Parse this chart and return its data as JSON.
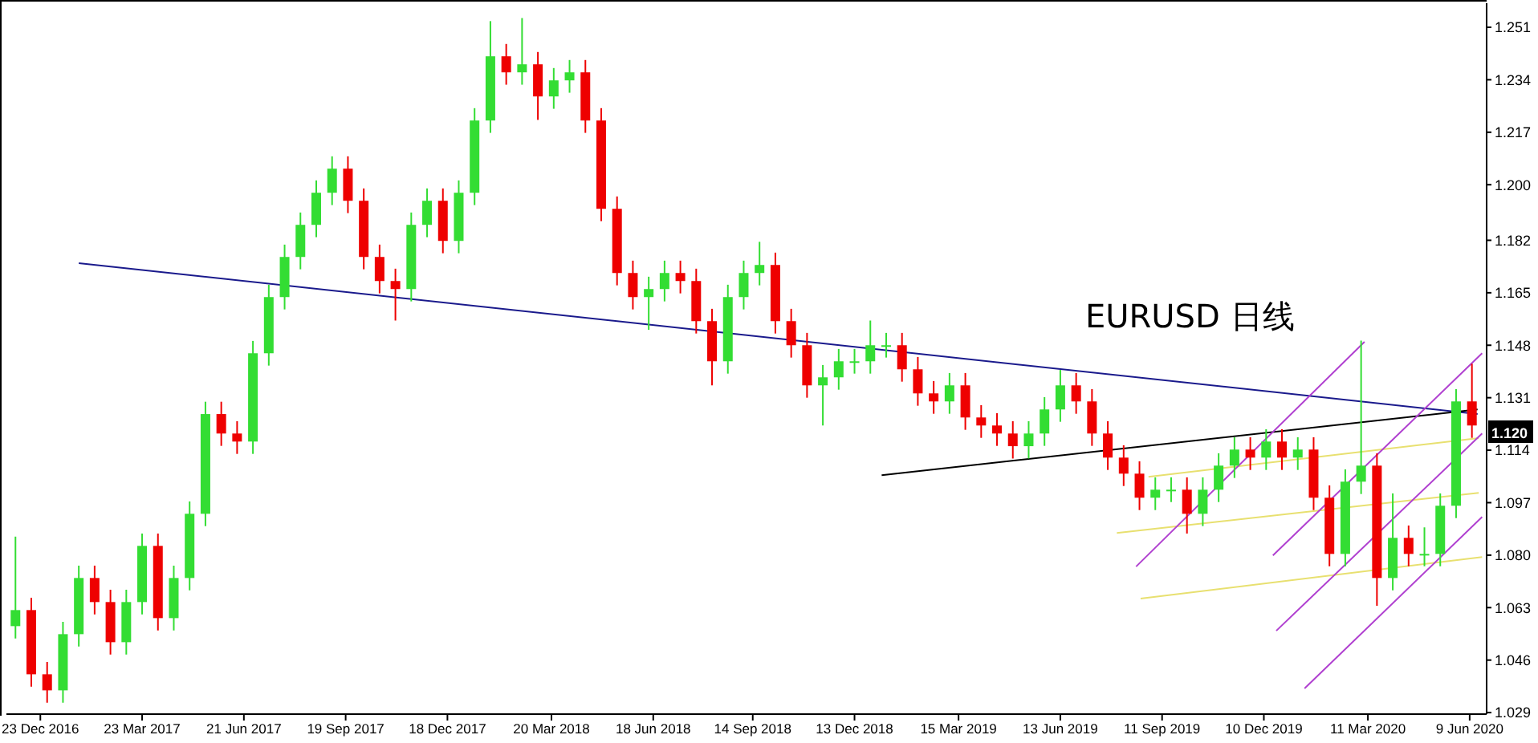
{
  "chart_data": {
    "type": "candlestick",
    "title": "EURUSD 日线",
    "x": [
      "2016-12-01",
      "2016-12-15",
      "2016-12-29",
      "2017-01-12",
      "2017-01-26",
      "2017-02-09",
      "2017-02-23",
      "2017-03-09",
      "2017-03-23",
      "2017-04-06",
      "2017-04-20",
      "2017-05-04",
      "2017-05-18",
      "2017-06-01",
      "2017-06-15",
      "2017-06-29",
      "2017-07-13",
      "2017-07-27",
      "2017-08-10",
      "2017-08-24",
      "2017-09-07",
      "2017-09-21",
      "2017-10-05",
      "2017-10-19",
      "2017-11-02",
      "2017-11-16",
      "2017-11-30",
      "2017-12-14",
      "2017-12-28",
      "2018-01-11",
      "2018-01-25",
      "2018-02-08",
      "2018-02-22",
      "2018-03-08",
      "2018-03-22",
      "2018-04-05",
      "2018-04-19",
      "2018-05-03",
      "2018-05-17",
      "2018-05-31",
      "2018-06-14",
      "2018-06-28",
      "2018-07-12",
      "2018-07-26",
      "2018-08-09",
      "2018-08-23",
      "2018-09-06",
      "2018-09-20",
      "2018-10-04",
      "2018-10-18",
      "2018-11-01",
      "2018-11-15",
      "2018-11-29",
      "2018-12-13",
      "2018-12-27",
      "2019-01-10",
      "2019-01-24",
      "2019-02-07",
      "2019-02-21",
      "2019-03-07",
      "2019-03-21",
      "2019-04-04",
      "2019-04-18",
      "2019-05-02",
      "2019-05-16",
      "2019-05-30",
      "2019-06-13",
      "2019-06-27",
      "2019-07-11",
      "2019-07-25",
      "2019-08-08",
      "2019-08-22",
      "2019-09-05",
      "2019-09-19",
      "2019-10-03",
      "2019-10-17",
      "2019-10-31",
      "2019-11-14",
      "2019-11-28",
      "2019-12-12",
      "2019-12-26",
      "2020-01-09",
      "2020-01-23",
      "2020-02-06",
      "2020-02-20",
      "2020-03-05",
      "2020-03-19",
      "2020-04-02",
      "2020-04-16",
      "2020-04-30",
      "2020-05-14",
      "2020-05-28",
      "2020-06-11"
    ],
    "ohlc": [
      [
        1.057,
        1.086,
        1.053,
        1.0622
      ],
      [
        1.0622,
        1.0662,
        1.0374,
        1.0414
      ],
      [
        1.0414,
        1.0454,
        1.0322,
        1.0362
      ],
      [
        1.0362,
        1.0584,
        1.0322,
        1.0544
      ],
      [
        1.0544,
        1.0766,
        1.0504,
        1.0726
      ],
      [
        1.0726,
        1.0766,
        1.0608,
        1.0648
      ],
      [
        1.0648,
        1.0688,
        1.0478,
        1.0518
      ],
      [
        1.0518,
        1.0688,
        1.0478,
        1.0648
      ],
      [
        1.0648,
        1.087,
        1.0608,
        1.083
      ],
      [
        1.083,
        1.087,
        1.0556,
        1.0596
      ],
      [
        1.0596,
        1.0766,
        1.0556,
        1.0726
      ],
      [
        1.0726,
        1.0974,
        1.0686,
        1.0934
      ],
      [
        1.0934,
        1.1297,
        1.0894,
        1.1257
      ],
      [
        1.1257,
        1.1297,
        1.1154,
        1.1194
      ],
      [
        1.1194,
        1.1234,
        1.1128,
        1.1168
      ],
      [
        1.1168,
        1.1494,
        1.1128,
        1.1454
      ],
      [
        1.1454,
        1.1676,
        1.1414,
        1.1636
      ],
      [
        1.1636,
        1.1806,
        1.1596,
        1.1766
      ],
      [
        1.1766,
        1.191,
        1.1726,
        1.187
      ],
      [
        1.187,
        1.2014,
        1.183,
        1.1974
      ],
      [
        1.1974,
        1.2092,
        1.1934,
        1.2052
      ],
      [
        1.2052,
        1.2092,
        1.1908,
        1.1948
      ],
      [
        1.1948,
        1.1988,
        1.1726,
        1.1766
      ],
      [
        1.1766,
        1.1806,
        1.1648,
        1.1688
      ],
      [
        1.1688,
        1.1728,
        1.156,
        1.1662
      ],
      [
        1.1662,
        1.191,
        1.1622,
        1.187
      ],
      [
        1.187,
        1.1988,
        1.183,
        1.1948
      ],
      [
        1.1948,
        1.1988,
        1.1778,
        1.1818
      ],
      [
        1.1818,
        1.2014,
        1.1778,
        1.1974
      ],
      [
        1.1974,
        1.2248,
        1.1934,
        1.2208
      ],
      [
        1.2208,
        1.253,
        1.2168,
        1.2416
      ],
      [
        1.2416,
        1.2456,
        1.2324,
        1.2364
      ],
      [
        1.2364,
        1.254,
        1.2324,
        1.239
      ],
      [
        1.239,
        1.243,
        1.221,
        1.2286
      ],
      [
        1.2286,
        1.2378,
        1.2246,
        1.2338
      ],
      [
        1.2338,
        1.2404,
        1.2298,
        1.2364
      ],
      [
        1.2364,
        1.2404,
        1.2168,
        1.2208
      ],
      [
        1.2208,
        1.2248,
        1.1882,
        1.1922
      ],
      [
        1.1922,
        1.1962,
        1.1674,
        1.1714
      ],
      [
        1.1714,
        1.1754,
        1.1596,
        1.1636
      ],
      [
        1.1636,
        1.1702,
        1.153,
        1.1662
      ],
      [
        1.1662,
        1.1754,
        1.1622,
        1.1714
      ],
      [
        1.1714,
        1.1754,
        1.1648,
        1.1688
      ],
      [
        1.1688,
        1.1728,
        1.1518,
        1.1558
      ],
      [
        1.1558,
        1.1598,
        1.135,
        1.1428
      ],
      [
        1.1428,
        1.1676,
        1.1388,
        1.1636
      ],
      [
        1.1636,
        1.1754,
        1.1596,
        1.1714
      ],
      [
        1.1714,
        1.1815,
        1.1674,
        1.174
      ],
      [
        1.174,
        1.178,
        1.1518,
        1.1558
      ],
      [
        1.1558,
        1.1598,
        1.144,
        1.148
      ],
      [
        1.148,
        1.152,
        1.131,
        1.135
      ],
      [
        1.135,
        1.1416,
        1.122,
        1.1376
      ],
      [
        1.1376,
        1.1468,
        1.1336,
        1.1428
      ],
      [
        1.1428,
        1.1468,
        1.1388,
        1.1428
      ],
      [
        1.1428,
        1.156,
        1.1388,
        1.148
      ],
      [
        1.148,
        1.152,
        1.144,
        1.148
      ],
      [
        1.148,
        1.152,
        1.1362,
        1.1402
      ],
      [
        1.1402,
        1.1442,
        1.1284,
        1.1324
      ],
      [
        1.1324,
        1.1364,
        1.1258,
        1.1298
      ],
      [
        1.1298,
        1.139,
        1.1258,
        1.135
      ],
      [
        1.135,
        1.139,
        1.1206,
        1.1246
      ],
      [
        1.1246,
        1.1286,
        1.118,
        1.122
      ],
      [
        1.122,
        1.126,
        1.1154,
        1.1194
      ],
      [
        1.1194,
        1.1234,
        1.1113,
        1.1153
      ],
      [
        1.1153,
        1.1234,
        1.1113,
        1.1194
      ],
      [
        1.1194,
        1.1312,
        1.1154,
        1.1272
      ],
      [
        1.1272,
        1.14,
        1.1232,
        1.135
      ],
      [
        1.135,
        1.139,
        1.1258,
        1.1298
      ],
      [
        1.1298,
        1.1338,
        1.1154,
        1.1194
      ],
      [
        1.1194,
        1.1234,
        1.1076,
        1.1116
      ],
      [
        1.1116,
        1.1156,
        1.1024,
        1.1064
      ],
      [
        1.1064,
        1.1104,
        1.0946,
        1.0986
      ],
      [
        1.0986,
        1.1052,
        1.0946,
        1.1012
      ],
      [
        1.1012,
        1.1052,
        1.0972,
        1.1012
      ],
      [
        1.1012,
        1.1052,
        1.087,
        1.0934
      ],
      [
        1.0934,
        1.1052,
        1.0894,
        1.1012
      ],
      [
        1.1012,
        1.113,
        1.0972,
        1.109
      ],
      [
        1.109,
        1.1182,
        1.105,
        1.1142
      ],
      [
        1.1142,
        1.1182,
        1.1076,
        1.1116
      ],
      [
        1.1116,
        1.1208,
        1.1076,
        1.1168
      ],
      [
        1.1168,
        1.1208,
        1.1076,
        1.1116
      ],
      [
        1.1116,
        1.1182,
        1.1076,
        1.1142
      ],
      [
        1.1142,
        1.1182,
        1.0946,
        1.0986
      ],
      [
        1.0986,
        1.1026,
        1.0764,
        1.0804
      ],
      [
        1.0804,
        1.1078,
        1.0764,
        1.1038
      ],
      [
        1.1038,
        1.1495,
        1.0998,
        1.109
      ],
      [
        1.109,
        1.113,
        1.0636,
        1.0726
      ],
      [
        1.0726,
        1.1,
        1.0686,
        1.0856
      ],
      [
        1.0856,
        1.0896,
        1.0764,
        1.0804
      ],
      [
        1.0804,
        1.089,
        1.0764,
        1.0804
      ],
      [
        1.0804,
        1.1,
        1.0764,
        1.096
      ],
      [
        1.096,
        1.1338,
        1.092,
        1.1298
      ],
      [
        1.1298,
        1.142,
        1.118,
        1.122
      ]
    ],
    "colors": [
      "#33dd33",
      "#ee0000",
      "#ee0000",
      "#33dd33",
      "#33dd33",
      "#ee0000",
      "#ee0000",
      "#33dd33",
      "#33dd33",
      "#ee0000",
      "#33dd33",
      "#33dd33",
      "#33dd33",
      "#ee0000",
      "#ee0000",
      "#33dd33",
      "#33dd33",
      "#33dd33",
      "#33dd33",
      "#33dd33",
      "#33dd33",
      "#ee0000",
      "#ee0000",
      "#ee0000",
      "#ee0000",
      "#33dd33",
      "#33dd33",
      "#ee0000",
      "#33dd33",
      "#33dd33",
      "#33dd33",
      "#ee0000",
      "#33dd33",
      "#ee0000",
      "#33dd33",
      "#33dd33",
      "#ee0000",
      "#ee0000",
      "#ee0000",
      "#ee0000",
      "#33dd33",
      "#33dd33",
      "#ee0000",
      "#ee0000",
      "#ee0000",
      "#33dd33",
      "#33dd33",
      "#33dd33",
      "#ee0000",
      "#ee0000",
      "#ee0000",
      "#33dd33",
      "#33dd33",
      "#33dd33",
      "#33dd33",
      "#33dd33",
      "#ee0000",
      "#ee0000",
      "#ee0000",
      "#33dd33",
      "#ee0000",
      "#ee0000",
      "#ee0000",
      "#ee0000",
      "#33dd33",
      "#33dd33",
      "#33dd33",
      "#ee0000",
      "#ee0000",
      "#ee0000",
      "#ee0000",
      "#ee0000",
      "#33dd33",
      "#33dd33",
      "#ee0000",
      "#33dd33",
      "#33dd33",
      "#33dd33",
      "#ee0000",
      "#33dd33",
      "#ee0000",
      "#33dd33",
      "#ee0000",
      "#ee0000",
      "#33dd33",
      "#33dd33",
      "#ee0000",
      "#33dd33",
      "#ee0000",
      "#33dd33",
      "#33dd33",
      "#33dd33",
      "#ee0000"
    ],
    "series": [
      {
        "type": "line",
        "x": [
          "2017-01-26",
          "2020-06-16"
        ],
        "values": [
          1.1746,
          1.1257
        ],
        "color": "#1a1a8c"
      },
      {
        "type": "line",
        "x": [
          "2019-01-06",
          "2020-06-16"
        ],
        "values": [
          1.1059,
          1.1272
        ],
        "color": "#000000"
      },
      {
        "type": "line",
        "x": [
          "2019-08-30",
          "2020-06-17"
        ],
        "values": [
          1.1054,
          1.1179
        ],
        "color": "#e8e070"
      },
      {
        "type": "line",
        "x": [
          "2019-08-02",
          "2020-06-17"
        ],
        "values": [
          1.0872,
          1.1002
        ],
        "color": "#e8e070"
      },
      {
        "type": "line",
        "x": [
          "2019-08-23",
          "2020-06-20"
        ],
        "values": [
          1.0659,
          1.0794
        ],
        "color": "#e8e070"
      },
      {
        "type": "line",
        "x": [
          "2019-08-19",
          "2020-03-08"
        ],
        "values": [
          1.0763,
          1.1491
        ],
        "color": "#b040d0"
      },
      {
        "type": "line",
        "x": [
          "2019-12-18",
          "2020-06-20"
        ],
        "values": [
          1.0799,
          1.1454
        ],
        "color": "#b040d0"
      },
      {
        "type": "line",
        "x": [
          "2019-12-21",
          "2020-06-20"
        ],
        "values": [
          1.0555,
          1.1194
        ],
        "color": "#b040d0"
      },
      {
        "type": "line",
        "x": [
          "2020-01-15",
          "2020-06-20"
        ],
        "values": [
          1.0368,
          1.0924
        ],
        "color": "#b040d0"
      }
    ],
    "xlim": [
      "2016-11-23",
      "2020-06-24"
    ],
    "xticks": [
      {
        "value": "2016-12-23",
        "label": "23 Dec 2016"
      },
      {
        "value": "2017-03-23",
        "label": "23 Mar 2017"
      },
      {
        "value": "2017-06-21",
        "label": "21 Jun 2017"
      },
      {
        "value": "2017-09-19",
        "label": "19 Sep 2017"
      },
      {
        "value": "2017-12-18",
        "label": "18 Dec 2017"
      },
      {
        "value": "2018-03-20",
        "label": "20 Mar 2018"
      },
      {
        "value": "2018-06-18",
        "label": "18 Jun 2018"
      },
      {
        "value": "2018-09-14",
        "label": "14 Sep 2018"
      },
      {
        "value": "2018-12-13",
        "label": "13 Dec 2018"
      },
      {
        "value": "2019-03-15",
        "label": "15 Mar 2019"
      },
      {
        "value": "2019-06-13",
        "label": "13 Jun 2019"
      },
      {
        "value": "2019-09-11",
        "label": "11 Sep 2019"
      },
      {
        "value": "2019-12-10",
        "label": "10 Dec 2019"
      },
      {
        "value": "2020-03-11",
        "label": "11 Mar 2020"
      },
      {
        "value": "2020-06-09",
        "label": "9 Jun 2020"
      }
    ],
    "ylim": [
      1.0285,
      1.2588
    ],
    "yticks": [
      1.029,
      1.046,
      1.063,
      {
        "value": 1.08,
        "label": "1.080"
      },
      1.097,
      1.114,
      1.131,
      1.148,
      1.165,
      1.182,
      {
        "value": 1.2,
        "label": "1.200"
      },
      1.217,
      1.234,
      1.251
    ],
    "annotations": [
      {
        "text": "1.120",
        "x": "2020-06-11",
        "y": 1.12
      }
    ]
  }
}
